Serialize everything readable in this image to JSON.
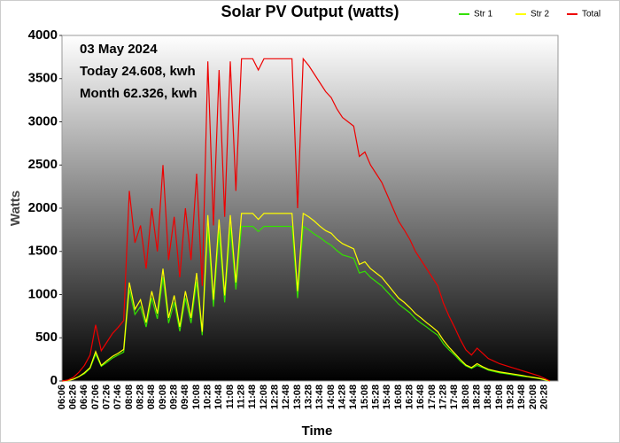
{
  "chart_data": {
    "type": "line",
    "title": "Solar PV Output (watts)",
    "x_label": "Time",
    "y_label": "Watts",
    "annotations": [
      "03 May 2024",
      "Today 24.608, kwh",
      "Month 62.326, kwh"
    ],
    "categories": [
      "06:06",
      null,
      "06:26",
      null,
      "06:46",
      null,
      "07:06",
      null,
      "07:26",
      null,
      "07:46",
      null,
      "08:08",
      null,
      "08:28",
      null,
      "08:48",
      null,
      "09:08",
      null,
      "09:28",
      null,
      "09:48",
      null,
      "10:08",
      null,
      "10:28",
      null,
      "10:48",
      null,
      "11:08",
      null,
      "11:28",
      null,
      "11:48",
      null,
      "12:08",
      null,
      "12:28",
      null,
      "12:48",
      null,
      "13:08",
      null,
      "13:28",
      null,
      "13:48",
      null,
      "14:08",
      null,
      "14:28",
      null,
      "14:48",
      null,
      "15:08",
      null,
      "15:28",
      null,
      "15:48",
      null,
      "16:08",
      null,
      "16:28",
      null,
      "16:48",
      null,
      "17:08",
      null,
      "17:28",
      null,
      "17:48",
      null,
      "18:08",
      null,
      "18:28",
      null,
      "18:48",
      null,
      "19:08",
      null,
      "19:28",
      null,
      "19:48",
      null,
      "20:08",
      null,
      "20:28",
      null
    ],
    "series": [
      {
        "name": "Str 1",
        "color": "#33e000",
        "values": [
          0,
          5,
          20,
          50,
          85,
          145,
          310,
          170,
          215,
          265,
          300,
          335,
          1060,
          770,
          860,
          625,
          960,
          720,
          1200,
          670,
          910,
          575,
          960,
          670,
          1150,
          530,
          1780,
          860,
          1730,
          910,
          1780,
          1060,
          1790,
          1790,
          1790,
          1730,
          1790,
          1790,
          1790,
          1790,
          1790,
          1790,
          960,
          1790,
          1750,
          1700,
          1660,
          1610,
          1570,
          1510,
          1460,
          1440,
          1420,
          1250,
          1270,
          1200,
          1150,
          1100,
          1030,
          960,
          890,
          840,
          790,
          720,
          670,
          625,
          575,
          530,
          430,
          360,
          300,
          230,
          175,
          145,
          180,
          155,
          125,
          110,
          95,
          85,
          75,
          65,
          55,
          48,
          38,
          28,
          14,
          0
        ]
      },
      {
        "name": "Str 2",
        "color": "#ffff00",
        "values": [
          0,
          5,
          20,
          50,
          95,
          155,
          340,
          180,
          235,
          285,
          320,
          365,
          1140,
          830,
          940,
          675,
          1040,
          780,
          1300,
          730,
          990,
          625,
          1040,
          730,
          1250,
          570,
          1920,
          940,
          1870,
          990,
          1920,
          1140,
          1940,
          1940,
          1940,
          1870,
          1940,
          1940,
          1940,
          1940,
          1940,
          1940,
          1040,
          1940,
          1900,
          1850,
          1790,
          1740,
          1710,
          1640,
          1590,
          1560,
          1530,
          1350,
          1380,
          1300,
          1250,
          1200,
          1120,
          1040,
          960,
          910,
          850,
          780,
          730,
          675,
          625,
          570,
          470,
          390,
          320,
          250,
          185,
          155,
          200,
          165,
          135,
          120,
          105,
          95,
          85,
          75,
          65,
          52,
          42,
          32,
          16,
          0
        ]
      },
      {
        "name": "Total",
        "color": "#ee0000",
        "values": [
          0,
          10,
          40,
          100,
          180,
          300,
          650,
          350,
          450,
          550,
          620,
          700,
          2200,
          1600,
          1800,
          1300,
          2000,
          1500,
          2500,
          1400,
          1900,
          1200,
          2000,
          1400,
          2400,
          1100,
          3700,
          1800,
          3600,
          1900,
          3700,
          2200,
          3730,
          3730,
          3730,
          3600,
          3730,
          3730,
          3730,
          3730,
          3730,
          3730,
          2000,
          3730,
          3650,
          3550,
          3450,
          3350,
          3280,
          3150,
          3050,
          3000,
          2950,
          2600,
          2650,
          2500,
          2400,
          2300,
          2150,
          2000,
          1850,
          1750,
          1640,
          1500,
          1400,
          1300,
          1200,
          1100,
          900,
          750,
          620,
          480,
          360,
          300,
          380,
          320,
          260,
          230,
          200,
          180,
          160,
          140,
          120,
          100,
          80,
          60,
          30,
          0
        ]
      }
    ],
    "ylim": [
      0,
      4000
    ],
    "yticks": [
      0,
      500,
      1000,
      1500,
      2000,
      2500,
      3000,
      3500,
      4000
    ],
    "grid": false,
    "legend": "top-right"
  }
}
